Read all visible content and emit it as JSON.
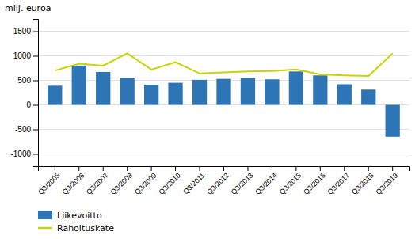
{
  "chart_data": {
    "type": "bar",
    "ylabel": "milj. euroa",
    "categories": [
      "Q3/2005",
      "Q3/2006",
      "Q3/2007",
      "Q3/2008",
      "Q3/2009",
      "Q3/2010",
      "Q3/2011",
      "Q3/2012",
      "Q3/2013",
      "Q3/2014",
      "Q3/2015",
      "Q3/2016",
      "Q3/2017",
      "Q3/2018",
      "Q3/2019"
    ],
    "series": [
      {
        "name": "Liikevoitto",
        "type": "bar",
        "color": "#2e75b6",
        "values": [
          390,
          800,
          670,
          550,
          410,
          450,
          510,
          530,
          550,
          520,
          680,
          600,
          420,
          310,
          -650
        ]
      },
      {
        "name": "Rahoituskate",
        "type": "line",
        "color": "#c8d400",
        "values": [
          700,
          840,
          800,
          1050,
          720,
          870,
          640,
          660,
          680,
          690,
          720,
          620,
          600,
          590,
          1050
        ]
      }
    ],
    "ylim": [
      -1250,
      1750
    ],
    "yticks": [
      -1000,
      -500,
      0,
      500,
      1000,
      1500
    ],
    "grid": true,
    "legend": "bottom"
  }
}
